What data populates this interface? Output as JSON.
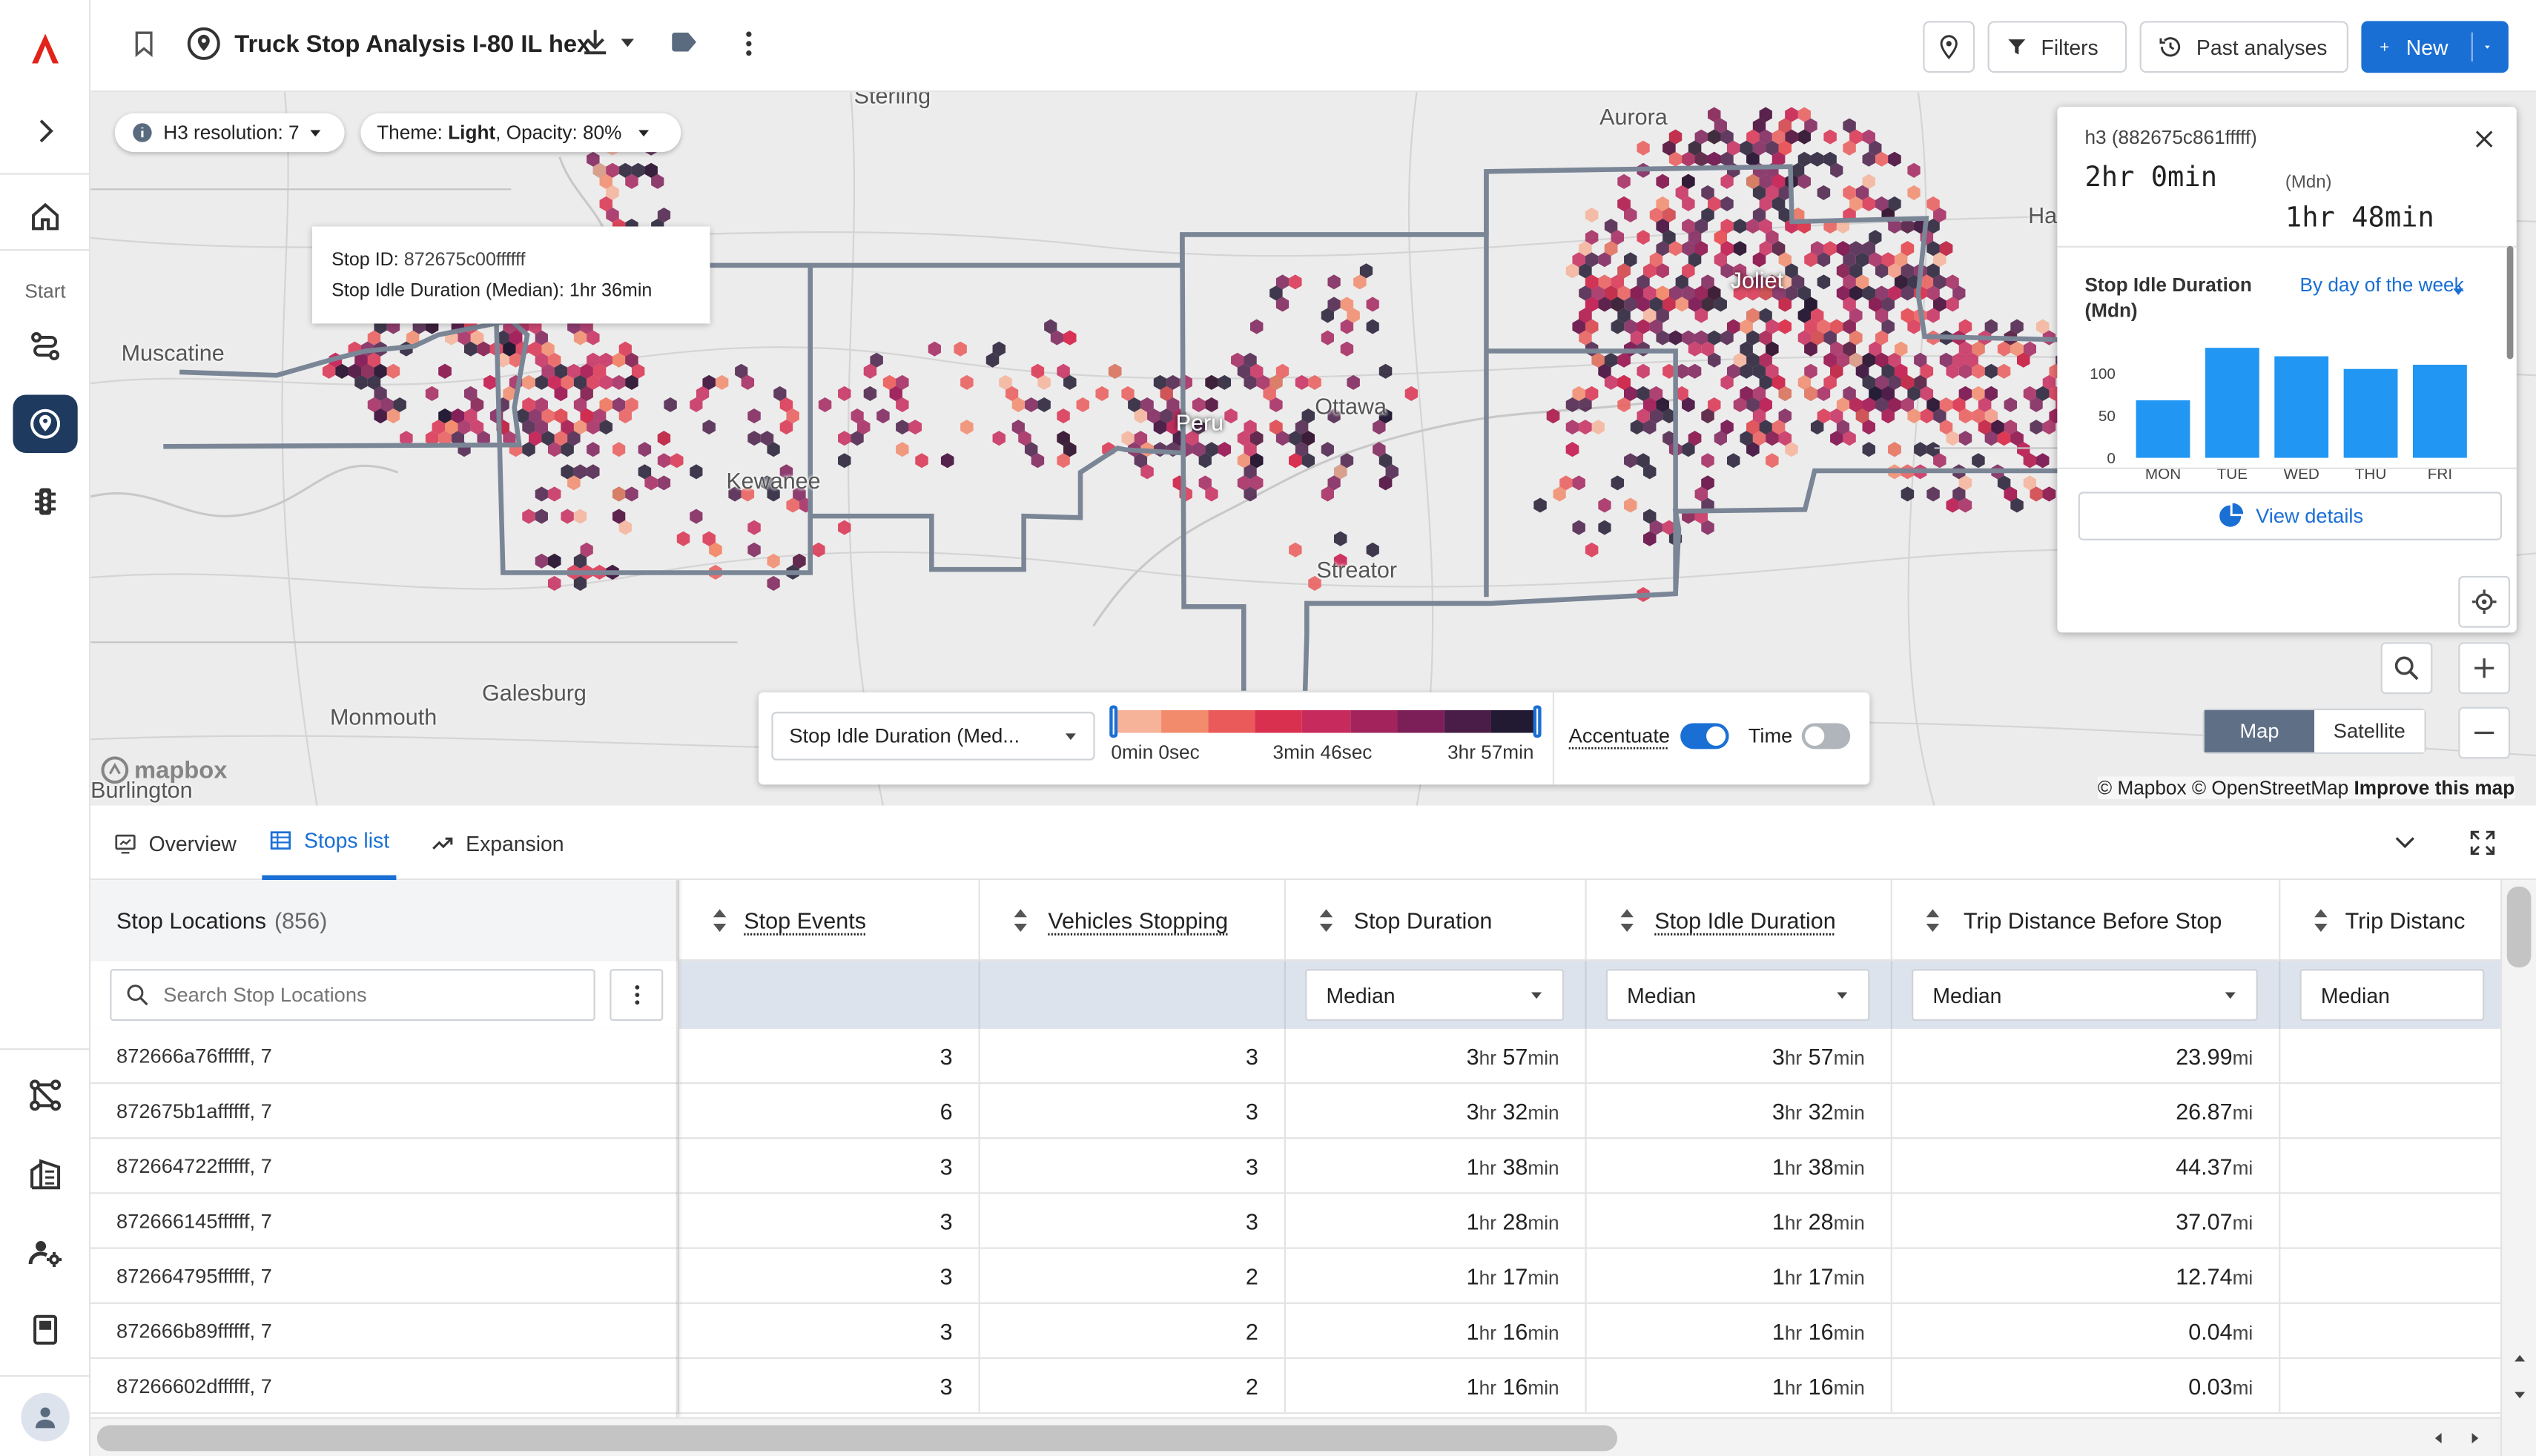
{
  "app": {
    "title": "Truck Stop Analysis I-80 IL hex",
    "start_label": "Start"
  },
  "toolbar": {
    "filters_label": "Filters",
    "past_label": "Past analyses",
    "new_label": "New"
  },
  "map": {
    "h3_chip": "H3 resolution: 7",
    "theme_chip_prefix": "Theme: ",
    "theme_value": "Light",
    "theme_suffix": ", Opacity: 80%",
    "tooltip": {
      "stop_id_label": "Stop ID:",
      "stop_id_value": "872675c00ffffff",
      "idle_label": "Stop Idle Duration (Median):",
      "idle_value": "1hr 36min"
    },
    "cities": [
      {
        "name": "Sterling"
      },
      {
        "name": "Aurora"
      },
      {
        "name": "Muscatine"
      },
      {
        "name": "Joliet"
      },
      {
        "name": "Peru"
      },
      {
        "name": "Ottawa"
      },
      {
        "name": "Kewanee"
      },
      {
        "name": "Streator"
      },
      {
        "name": "Galesburg"
      },
      {
        "name": "Monmouth"
      },
      {
        "name": "Burlington"
      },
      {
        "name": "Ham"
      }
    ],
    "legend": {
      "metric_select": "Stop Idle Duration (Med...",
      "min_label": "0min 0sec",
      "mid_label": "3min 46sec",
      "max_label": "3hr 57min",
      "accentuate_label": "Accentuate",
      "accentuate_on": true,
      "time_label": "Time",
      "time_on": false,
      "colors": [
        "#f6b39a",
        "#f28b6c",
        "#ea5a5a",
        "#d9304f",
        "#c72a5c",
        "#a3245d",
        "#7c1f58",
        "#4a1d48",
        "#221a33"
      ]
    },
    "attribution": {
      "mapbox": "© Mapbox",
      "osm": "© OpenStreetMap",
      "improve": "Improve this map",
      "logo": "mapbox"
    },
    "map_type": {
      "map": "Map",
      "satellite": "Satellite",
      "selected": "Map"
    }
  },
  "detail": {
    "h3_label": "h3 (882675c861fffff)",
    "main_value": "2hr 0min",
    "mdn_label": "(Mdn)",
    "mdn_value": "1hr 48min",
    "metric_label": "Stop Idle Duration (Mdn)",
    "group_select": "By day of the week",
    "view_details": "View details"
  },
  "chart_data": {
    "type": "bar",
    "categories": [
      "MON",
      "TUE",
      "WED",
      "THU",
      "FRI"
    ],
    "values": [
      68,
      130,
      120,
      105,
      110
    ],
    "title": "",
    "xlabel": "",
    "ylabel": "",
    "yticks": [
      0,
      50,
      100
    ],
    "ylim": [
      0,
      130
    ],
    "color": "#2196f3",
    "grid": false
  },
  "tabs": [
    {
      "label": "Overview",
      "active": false
    },
    {
      "label": "Stops list",
      "active": true
    },
    {
      "label": "Expansion",
      "active": false
    }
  ],
  "table": {
    "first_col_header": "Stop Locations",
    "first_col_count": "(856)",
    "search_placeholder": "Search Stop Locations",
    "columns": [
      {
        "label": "Stop Events",
        "filter": ""
      },
      {
        "label": "Vehicles Stopping",
        "filter": ""
      },
      {
        "label": "Stop Duration",
        "filter": "Median"
      },
      {
        "label": "Stop Idle Duration",
        "filter": "Median"
      },
      {
        "label": "Trip Distance Before Stop",
        "filter": "Median"
      },
      {
        "label": "Trip Distanc",
        "filter": "Median"
      }
    ],
    "rows": [
      {
        "loc": "872666a76ffffff, 7",
        "events": "3",
        "vehicles": "3",
        "dur_h": "3",
        "dur_m": "57",
        "idle_h": "3",
        "idle_m": "57",
        "dist": "23.99"
      },
      {
        "loc": "872675b1affffff, 7",
        "events": "6",
        "vehicles": "3",
        "dur_h": "3",
        "dur_m": "32",
        "idle_h": "3",
        "idle_m": "32",
        "dist": "26.87"
      },
      {
        "loc": "872664722ffffff, 7",
        "events": "3",
        "vehicles": "3",
        "dur_h": "1",
        "dur_m": "38",
        "idle_h": "1",
        "idle_m": "38",
        "dist": "44.37"
      },
      {
        "loc": "872666145ffffff, 7",
        "events": "3",
        "vehicles": "3",
        "dur_h": "1",
        "dur_m": "28",
        "idle_h": "1",
        "idle_m": "28",
        "dist": "37.07"
      },
      {
        "loc": "872664795ffffff, 7",
        "events": "3",
        "vehicles": "2",
        "dur_h": "1",
        "dur_m": "17",
        "idle_h": "1",
        "idle_m": "17",
        "dist": "12.74"
      },
      {
        "loc": "872666b89ffffff, 7",
        "events": "3",
        "vehicles": "2",
        "dur_h": "1",
        "dur_m": "16",
        "idle_h": "1",
        "idle_m": "16",
        "dist": "0.04"
      },
      {
        "loc": "87266602dffffff, 7",
        "events": "3",
        "vehicles": "2",
        "dur_h": "1",
        "dur_m": "16",
        "idle_h": "1",
        "idle_m": "16",
        "dist": "0.03"
      }
    ],
    "units": {
      "hr": "hr",
      "min": "min",
      "mi": "mi"
    }
  }
}
